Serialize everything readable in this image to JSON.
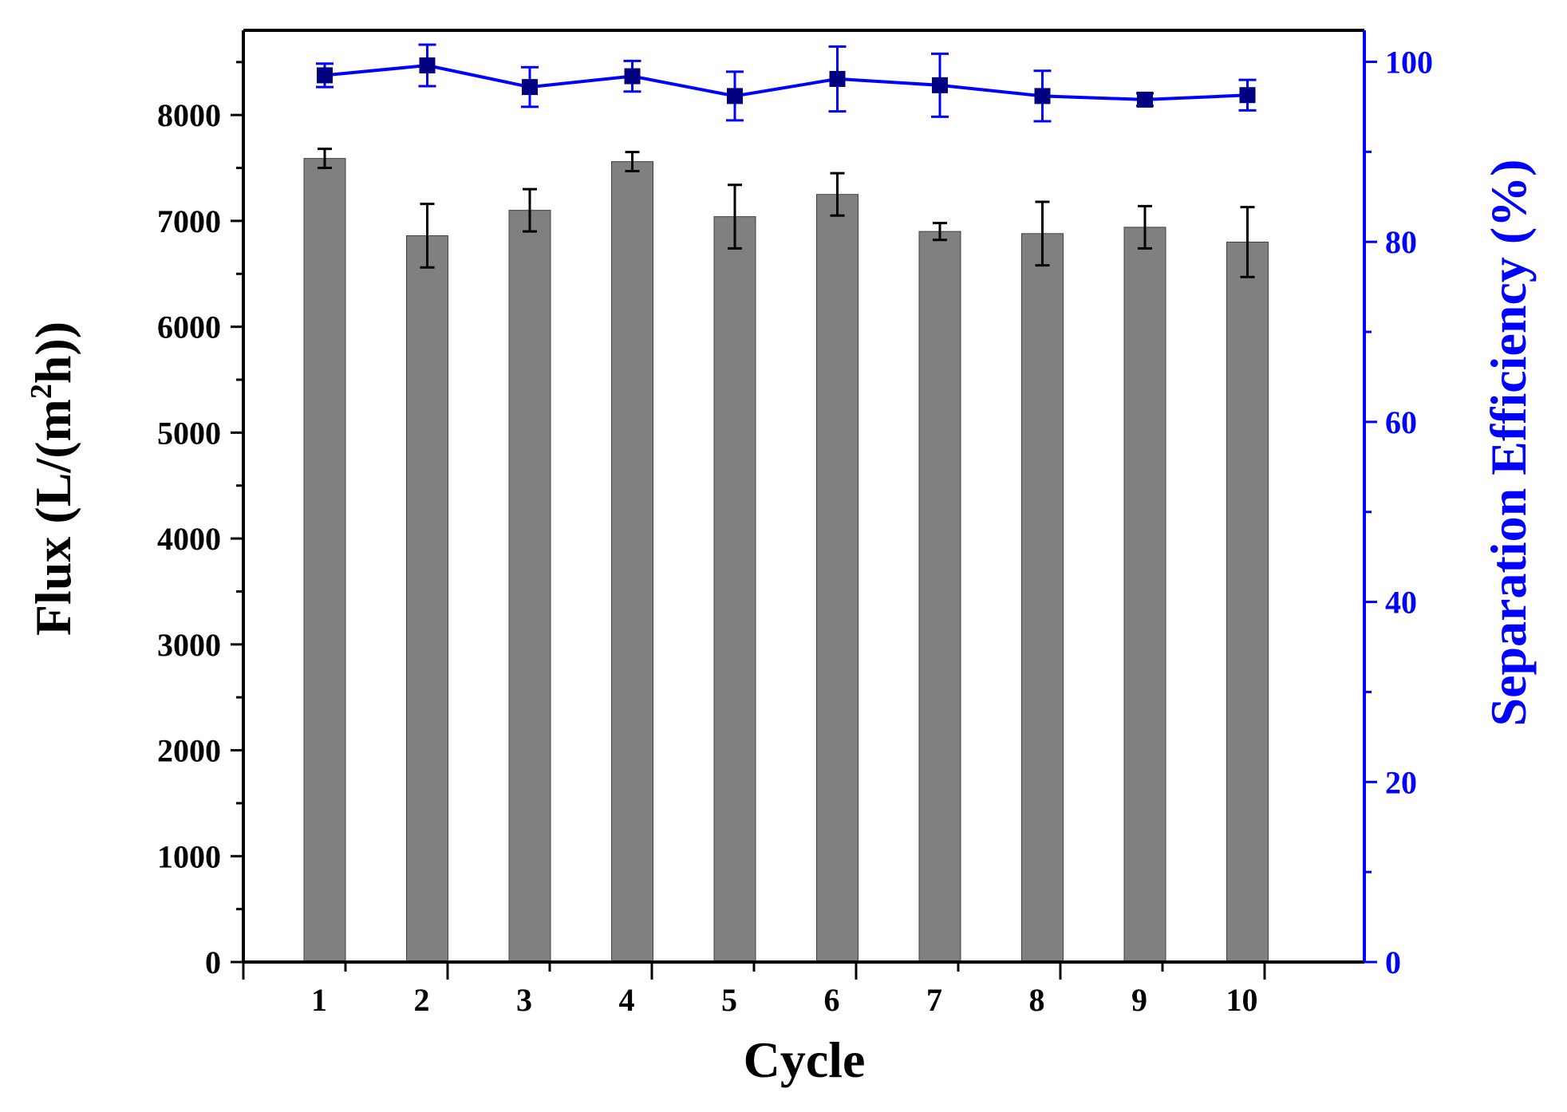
{
  "chart_data": {
    "type": "bar",
    "title": "",
    "xlabel": "Cycle",
    "ylabel": "Flux (L/(m",
    "ylabel_sup": "2",
    "ylabel_end": "h))",
    "y2label": "Separation Efficiency (%)",
    "categories": [
      "1",
      "2",
      "3",
      "4",
      "5",
      "6",
      "7",
      "8",
      "9",
      "10"
    ],
    "ylim": [
      0,
      8800
    ],
    "y2lim": [
      0,
      103.5
    ],
    "yticks": [
      "0",
      "1000",
      "2000",
      "3000",
      "4000",
      "5000",
      "6000",
      "7000",
      "8000"
    ],
    "y2ticks": [
      "0",
      "20",
      "40",
      "60",
      "80",
      "100"
    ],
    "grid": false,
    "legend": "none",
    "colors": {
      "bar": "#808080",
      "bar_edge": "#404040",
      "line": "#0000ff",
      "axis_left": "#000000",
      "axis_right": "#0000ff"
    },
    "series": [
      {
        "type": "bar",
        "axis": "left",
        "values": [
          7590,
          6860,
          7100,
          7560,
          7040,
          7250,
          6900,
          6880,
          6940,
          6800
        ],
        "errors": [
          90,
          300,
          200,
          90,
          300,
          200,
          80,
          300,
          200,
          330
        ]
      },
      {
        "type": "line",
        "axis": "right",
        "marker": "square",
        "values": [
          98.5,
          99.6,
          97.2,
          98.4,
          96.2,
          98.1,
          97.4,
          96.2,
          95.8,
          96.3
        ],
        "errors": [
          1.3,
          2.3,
          2.2,
          1.7,
          2.7,
          3.6,
          3.5,
          2.8,
          0.7,
          1.7
        ]
      }
    ]
  }
}
